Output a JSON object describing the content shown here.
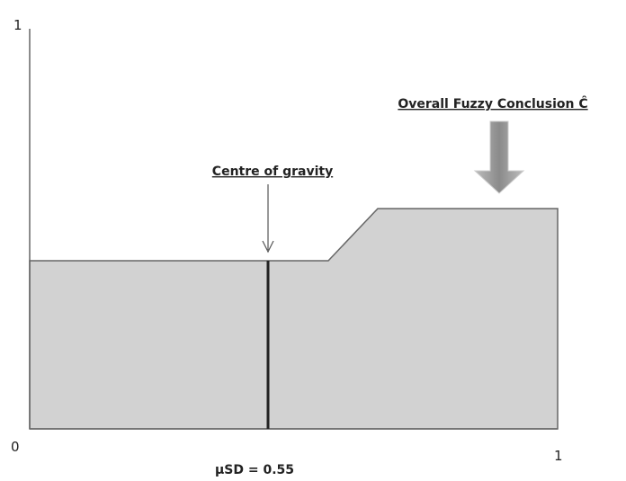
{
  "axes": {
    "y_max": "1",
    "origin": "0",
    "x_max": "1"
  },
  "annotations": {
    "centre": "Centre of gravity",
    "conclusion": "Overall Fuzzy Conclusion Ĉ",
    "result": "μSD = 0.55"
  }
}
